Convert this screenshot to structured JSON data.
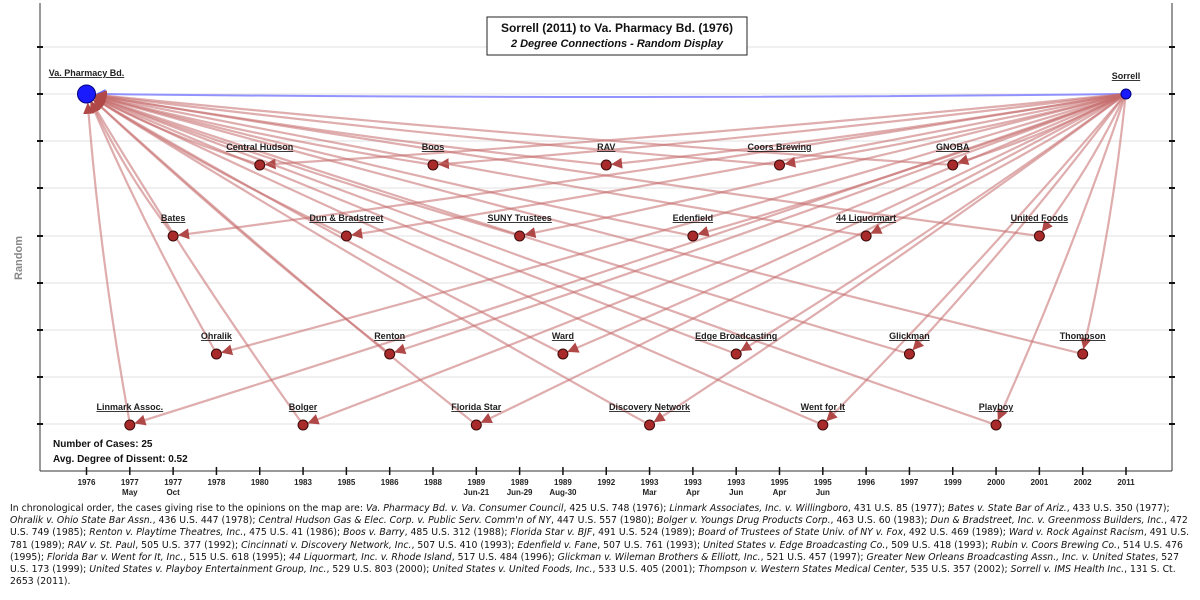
{
  "title": {
    "line1": "Sorrell (2011) to Va. Pharmacy Bd. (1976)",
    "line2": "2 Degree Connections - Random Display"
  },
  "y_axis_title": "Random",
  "stats": {
    "cases": "Number of Cases: 25",
    "dissent": "Avg. Degree of Dissent: 0.52"
  },
  "x_ticks": [
    {
      "l1": "1976",
      "l2": ""
    },
    {
      "l1": "1977",
      "l2": "May"
    },
    {
      "l1": "1977",
      "l2": "Oct"
    },
    {
      "l1": "1978",
      "l2": ""
    },
    {
      "l1": "1980",
      "l2": ""
    },
    {
      "l1": "1983",
      "l2": ""
    },
    {
      "l1": "1985",
      "l2": ""
    },
    {
      "l1": "1986",
      "l2": ""
    },
    {
      "l1": "1988",
      "l2": ""
    },
    {
      "l1": "1989",
      "l2": "Jun-21"
    },
    {
      "l1": "1989",
      "l2": "Jun-29"
    },
    {
      "l1": "1989",
      "l2": "Aug-30"
    },
    {
      "l1": "1992",
      "l2": ""
    },
    {
      "l1": "1993",
      "l2": "Mar"
    },
    {
      "l1": "1993",
      "l2": "Apr"
    },
    {
      "l1": "1993",
      "l2": "Jun"
    },
    {
      "l1": "1995",
      "l2": "Apr"
    },
    {
      "l1": "1995",
      "l2": "Jun"
    },
    {
      "l1": "1996",
      "l2": ""
    },
    {
      "l1": "1997",
      "l2": ""
    },
    {
      "l1": "1999",
      "l2": ""
    },
    {
      "l1": "2000",
      "l2": ""
    },
    {
      "l1": "2001",
      "l2": ""
    },
    {
      "l1": "2002",
      "l2": ""
    },
    {
      "l1": "2011",
      "l2": ""
    }
  ],
  "nodes": [
    {
      "id": "va",
      "label": "Va. Pharmacy Bd.",
      "col": 0,
      "row": 0,
      "kind": "source",
      "color": "#1a1aff"
    },
    {
      "id": "sorrell",
      "label": "Sorrell",
      "col": 24,
      "row": 0,
      "kind": "target",
      "color": "#1a1aff"
    },
    {
      "id": "linmark",
      "label": "Linmark Assoc.",
      "col": 1,
      "row": 6,
      "kind": "case",
      "color": "#a92a2a"
    },
    {
      "id": "bates",
      "label": "Bates",
      "col": 2,
      "row": 3,
      "kind": "case",
      "color": "#a92a2a"
    },
    {
      "id": "ohralik",
      "label": "Ohralik",
      "col": 3,
      "row": 5,
      "kind": "case",
      "color": "#a92a2a"
    },
    {
      "id": "centralhudson",
      "label": "Central Hudson",
      "col": 4,
      "row": 2,
      "kind": "case",
      "color": "#a92a2a"
    },
    {
      "id": "bolger",
      "label": "Bolger",
      "col": 5,
      "row": 6,
      "kind": "case",
      "color": "#a92a2a"
    },
    {
      "id": "dun",
      "label": "Dun & Bradstreet",
      "col": 6,
      "row": 3,
      "kind": "case",
      "color": "#a92a2a"
    },
    {
      "id": "renton",
      "label": "Renton",
      "col": 7,
      "row": 5,
      "kind": "case",
      "color": "#a92a2a"
    },
    {
      "id": "boos",
      "label": "Boos",
      "col": 8,
      "row": 2,
      "kind": "case",
      "color": "#a92a2a"
    },
    {
      "id": "floridastar",
      "label": "Florida Star",
      "col": 9,
      "row": 6,
      "kind": "case",
      "color": "#a92a2a"
    },
    {
      "id": "suny",
      "label": "SUNY Trustees",
      "col": 10,
      "row": 3,
      "kind": "case",
      "color": "#a92a2a"
    },
    {
      "id": "ward",
      "label": "Ward",
      "col": 11,
      "row": 5,
      "kind": "case",
      "color": "#a92a2a"
    },
    {
      "id": "rav",
      "label": "RAV",
      "col": 12,
      "row": 2,
      "kind": "case",
      "color": "#a92a2a"
    },
    {
      "id": "discovery",
      "label": "Discovery Network",
      "col": 13,
      "row": 6,
      "kind": "case",
      "color": "#a92a2a"
    },
    {
      "id": "edenfield",
      "label": "Edenfield",
      "col": 14,
      "row": 3,
      "kind": "case",
      "color": "#a92a2a"
    },
    {
      "id": "edge",
      "label": "Edge Broadcasting",
      "col": 15,
      "row": 5,
      "kind": "case",
      "color": "#a92a2a"
    },
    {
      "id": "coors",
      "label": "Coors Brewing",
      "col": 16,
      "row": 2,
      "kind": "case",
      "color": "#a92a2a"
    },
    {
      "id": "wentforit",
      "label": "Went for It",
      "col": 17,
      "row": 6,
      "kind": "case",
      "color": "#a92a2a"
    },
    {
      "id": "liquormart",
      "label": "44 Liquormart",
      "col": 18,
      "row": 3,
      "kind": "case",
      "color": "#a92a2a"
    },
    {
      "id": "glickman",
      "label": "Glickman",
      "col": 19,
      "row": 5,
      "kind": "case",
      "color": "#a92a2a"
    },
    {
      "id": "gnoba",
      "label": "GNOBA",
      "col": 20,
      "row": 2,
      "kind": "case",
      "color": "#a92a2a"
    },
    {
      "id": "playboy",
      "label": "Playboy",
      "col": 21,
      "row": 6,
      "kind": "case",
      "color": "#a92a2a"
    },
    {
      "id": "unitedfoods",
      "label": "United Foods",
      "col": 22,
      "row": 3,
      "kind": "case",
      "color": "#a92a2a"
    },
    {
      "id": "thompson",
      "label": "Thompson",
      "col": 23,
      "row": 5,
      "kind": "case",
      "color": "#a92a2a"
    }
  ],
  "colors": {
    "direct_edge": "#8080ff",
    "edge": "#c46a6a",
    "arrow": "#b04848"
  },
  "footnote": {
    "intro": "In chronological order, the cases giving rise to the opinions on the map are:",
    "citations": [
      {
        "name": "Va. Pharmacy Bd. v. Va. Consumer Council",
        "cite": ", 425 U.S. 748 (1976);"
      },
      {
        "name": "Linmark Associates, Inc. v. Willingboro",
        "cite": ", 431 U.S. 85 (1977);"
      },
      {
        "name": "Bates v. State Bar of Ariz.",
        "cite": ", 433 U.S. 350 (1977);"
      },
      {
        "name": "Ohralik v. Ohio State Bar Assn.",
        "cite": ", 436 U.S. 447 (1978);"
      },
      {
        "name": "Central Hudson Gas & Elec. Corp. v. Public Serv. Comm'n of NY",
        "cite": ", 447 U.S. 557 (1980);"
      },
      {
        "name": "Bolger v. Youngs Drug Products Corp.",
        "cite": ", 463 U.S. 60 (1983);"
      },
      {
        "name": "Dun & Bradstreet, Inc. v. Greenmoss Builders, Inc.",
        "cite": ", 472 U.S. 749 (1985);"
      },
      {
        "name": "Renton v. Playtime Theatres, Inc.",
        "cite": ", 475 U.S. 41 (1986);"
      },
      {
        "name": "Boos v. Barry",
        "cite": ", 485 U.S. 312 (1988);"
      },
      {
        "name": "Florida Star v. BJF",
        "cite": ", 491 U.S. 524 (1989);"
      },
      {
        "name": "Board of Trustees of State Univ. of NY v. Fox",
        "cite": ", 492 U.S. 469 (1989);"
      },
      {
        "name": "Ward v. Rock Against Racism",
        "cite": ", 491 U.S. 781 (1989);"
      },
      {
        "name": "RAV v. St. Paul",
        "cite": ", 505 U.S. 377 (1992);"
      },
      {
        "name": "Cincinnati v. Discovery Network, Inc.",
        "cite": ", 507 U.S. 410 (1993);"
      },
      {
        "name": "Edenfield v. Fane",
        "cite": ", 507 U.S. 761 (1993);"
      },
      {
        "name": "United States v. Edge Broadcasting Co.",
        "cite": ", 509 U.S. 418 (1993);"
      },
      {
        "name": "Rubin v. Coors Brewing Co.",
        "cite": ", 514 U.S. 476 (1995);"
      },
      {
        "name": "Florida Bar v. Went for It, Inc.",
        "cite": ", 515 U.S. 618 (1995);"
      },
      {
        "name": "44 Liquormart, Inc. v. Rhode Island",
        "cite": ", 517 U.S. 484 (1996);"
      },
      {
        "name": "Glickman v. Wileman Brothers & Elliott, Inc.",
        "cite": ", 521 U.S. 457 (1997);"
      },
      {
        "name": "Greater New Orleans Broadcasting Assn., Inc. v. United States",
        "cite": ", 527 U.S. 173 (1999);"
      },
      {
        "name": "United States v. Playboy Entertainment Group, Inc.",
        "cite": ", 529 U.S. 803 (2000);"
      },
      {
        "name": "United States v. United Foods, Inc.",
        "cite": ", 533 U.S. 405 (2001);"
      },
      {
        "name": "Thompson v. Western States Medical Center",
        "cite": ", 535 U.S. 357 (2002);"
      },
      {
        "name": "Sorrell v. IMS Health Inc.",
        "cite": ", 131 S. Ct. 2653 (2011)."
      }
    ]
  }
}
